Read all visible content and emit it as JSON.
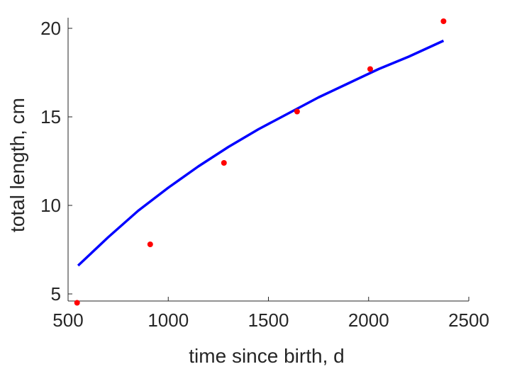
{
  "chart_data": {
    "type": "scatter",
    "xlabel": "time since birth, d",
    "ylabel": "total length, cm",
    "xlim": [
      500,
      2500
    ],
    "ylim": [
      4.6,
      20.6
    ],
    "xticks": [
      500,
      1000,
      1500,
      2000,
      2500
    ],
    "yticks": [
      5,
      10,
      15,
      20
    ],
    "xtick_labels": [
      "500",
      "1000",
      "1500",
      "2000",
      "2500"
    ],
    "ytick_labels": [
      "5",
      "10",
      "15",
      "20"
    ],
    "grid": false,
    "series": [
      {
        "kind": "points",
        "color": "#ff0000",
        "x": [
          545,
          910,
          1278,
          1643,
          2008,
          2374
        ],
        "y": [
          4.5,
          7.8,
          12.4,
          15.3,
          17.7,
          20.4
        ]
      },
      {
        "kind": "line",
        "color": "#0000ff",
        "x": [
          550,
          700,
          850,
          1000,
          1150,
          1300,
          1450,
          1600,
          1750,
          1900,
          2050,
          2200,
          2374
        ],
        "y": [
          6.6,
          8.2,
          9.7,
          11.0,
          12.2,
          13.3,
          14.3,
          15.2,
          16.1,
          16.9,
          17.7,
          18.4,
          19.3
        ]
      }
    ]
  }
}
